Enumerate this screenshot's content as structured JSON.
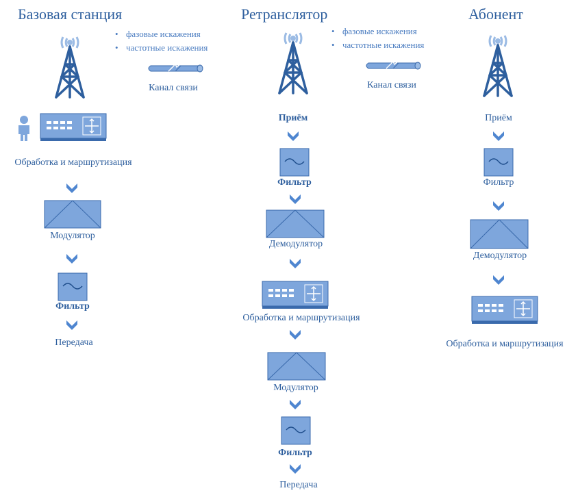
{
  "columns": {
    "base": {
      "title": "Базовая станция",
      "labels": {
        "processing": "Обработка и маршрутизация",
        "modulator": "Модулятор",
        "filter": "Фильтр",
        "transmit": "Передача"
      }
    },
    "relay": {
      "title": "Ретранслятор",
      "labels": {
        "receive": "Приём",
        "filter1": "Фильтр",
        "demodulator": "Демодулятор",
        "processing": "Обработка и маршрутизация",
        "modulator": "Модулятор",
        "filter2": "Фильтр",
        "transmit": "Передача"
      }
    },
    "subscriber": {
      "title": "Абонент",
      "labels": {
        "receive": "Приём",
        "filter": "Фильтр",
        "demodulator": "Демодулятор",
        "processing": "Обработка и маршрутизация"
      }
    }
  },
  "channels": [
    {
      "label": "Канал связи",
      "distortions": [
        "фазовые искажения",
        "частотные искажения"
      ]
    },
    {
      "label": "Канал связи",
      "distortions": [
        "фазовые искажения",
        "частотные искажения"
      ]
    }
  ],
  "colors": {
    "fill": "#7ea6dc",
    "stroke": "#3a6aac",
    "dark": "#2e5f9e",
    "tower": "#2e5f9e",
    "signal": "#9bbbe4",
    "arrow": "#4f86d0"
  }
}
